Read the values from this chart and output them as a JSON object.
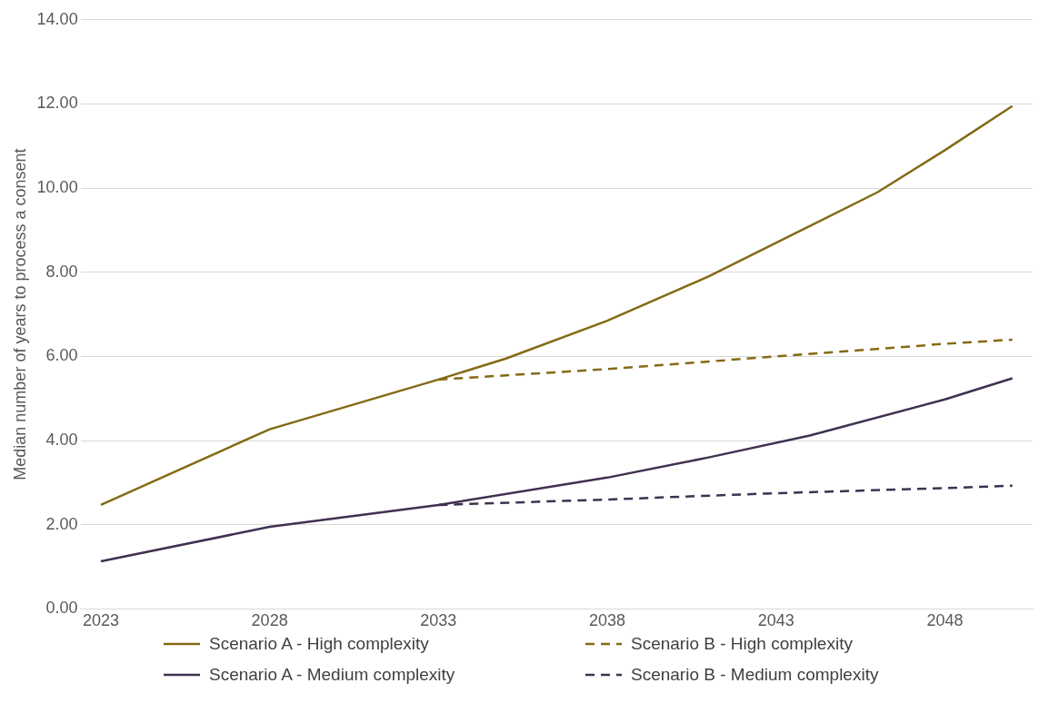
{
  "chart_data": {
    "type": "line",
    "ylabel": "Median number of years to process a consent",
    "xlim": [
      2022.4,
      2050.6
    ],
    "xticks": [
      2023,
      2028,
      2033,
      2038,
      2043,
      2048
    ],
    "ylim": [
      0,
      14
    ],
    "yticks": [
      {
        "value": 0,
        "label": "0.00"
      },
      {
        "value": 2,
        "label": "2.00"
      },
      {
        "value": 4,
        "label": "4.00"
      },
      {
        "value": 6,
        "label": "6.00"
      },
      {
        "value": 8,
        "label": "8.00"
      },
      {
        "value": 10,
        "label": "10.00"
      },
      {
        "value": 12,
        "label": "12.00"
      },
      {
        "value": 14,
        "label": "14.00"
      }
    ],
    "grid": "y",
    "legend": "bottom",
    "marker": "none",
    "series": [
      {
        "name": "Scenario A - High complexity",
        "color": "#846a14",
        "line_style": "solid",
        "x": [
          2023,
          2028,
          2033,
          2035,
          2038,
          2041,
          2044,
          2046,
          2048,
          2050
        ],
        "values": [
          2.47,
          4.27,
          5.45,
          5.95,
          6.85,
          7.9,
          9.1,
          9.9,
          10.9,
          11.95
        ]
      },
      {
        "name": "Scenario B - High complexity",
        "color": "#846a14",
        "line_style": "dashed",
        "x": [
          2033,
          2038,
          2043,
          2048,
          2050
        ],
        "values": [
          5.45,
          5.7,
          6.0,
          6.3,
          6.4
        ]
      },
      {
        "name": "Scenario A - Medium complexity",
        "color": "#403151",
        "line_style": "solid",
        "x": [
          2023,
          2028,
          2033,
          2038,
          2041,
          2044,
          2048,
          2050
        ],
        "values": [
          1.13,
          1.95,
          2.47,
          3.12,
          3.6,
          4.12,
          4.98,
          5.48
        ]
      },
      {
        "name": "Scenario B - Medium complexity",
        "color": "#403151",
        "line_style": "dashed",
        "x": [
          2033,
          2038,
          2043,
          2048,
          2050
        ],
        "values": [
          2.47,
          2.6,
          2.75,
          2.87,
          2.93
        ]
      }
    ]
  }
}
